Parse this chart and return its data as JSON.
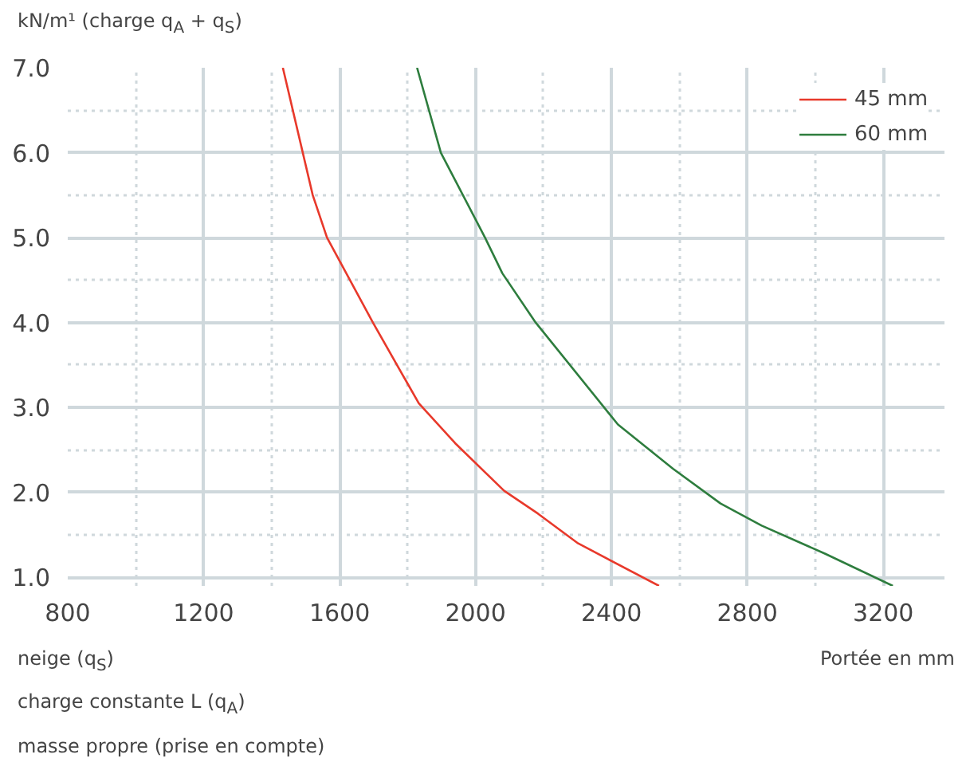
{
  "chart_data": {
    "type": "line",
    "ylabel": "kN/m¹ (charge q$_{A}$ + q$_{S}$)",
    "xlabel": "Portée en mm",
    "annotations": [
      "neige (q$_{S}$)",
      "charge constante L (q$_{A}$)",
      "masse propre (prise en compte)"
    ],
    "xlim": [
      800,
      3380
    ],
    "xticks": [
      800,
      1200,
      1600,
      2000,
      2400,
      2800,
      3200
    ],
    "ylim": [
      0.9,
      7.0
    ],
    "yticks": [
      {
        "value": 1,
        "label": "1.0"
      },
      {
        "value": 2,
        "label": "2.0"
      },
      {
        "value": 3,
        "label": "3.0"
      },
      {
        "value": 4,
        "label": "4.0"
      },
      {
        "value": 5,
        "label": "5.0"
      },
      {
        "value": 6,
        "label": "6.0"
      },
      {
        "value": 7,
        "label": "7.0"
      }
    ],
    "grid": true,
    "legend": "top right",
    "line_style": "solid",
    "series": [
      {
        "name": "45 mm",
        "color": "#e8392b",
        "x": [
          1433,
          1521,
          1563,
          1698,
          1833,
          1940,
          2084,
          2184,
          2302,
          2540
        ],
        "values": [
          7.0,
          5.5,
          5.0,
          4.0,
          3.05,
          2.58,
          2.02,
          1.75,
          1.4,
          0.9
        ]
      },
      {
        "name": "60 mm",
        "color": "#2e7d3e",
        "x": [
          1828,
          1898,
          2028,
          2079,
          2177,
          2419,
          2581,
          2721,
          2842,
          3028,
          3228
        ],
        "values": [
          7.0,
          6.0,
          5.0,
          4.58,
          4.0,
          2.8,
          2.28,
          1.87,
          1.61,
          1.28,
          0.9
        ]
      }
    ]
  }
}
